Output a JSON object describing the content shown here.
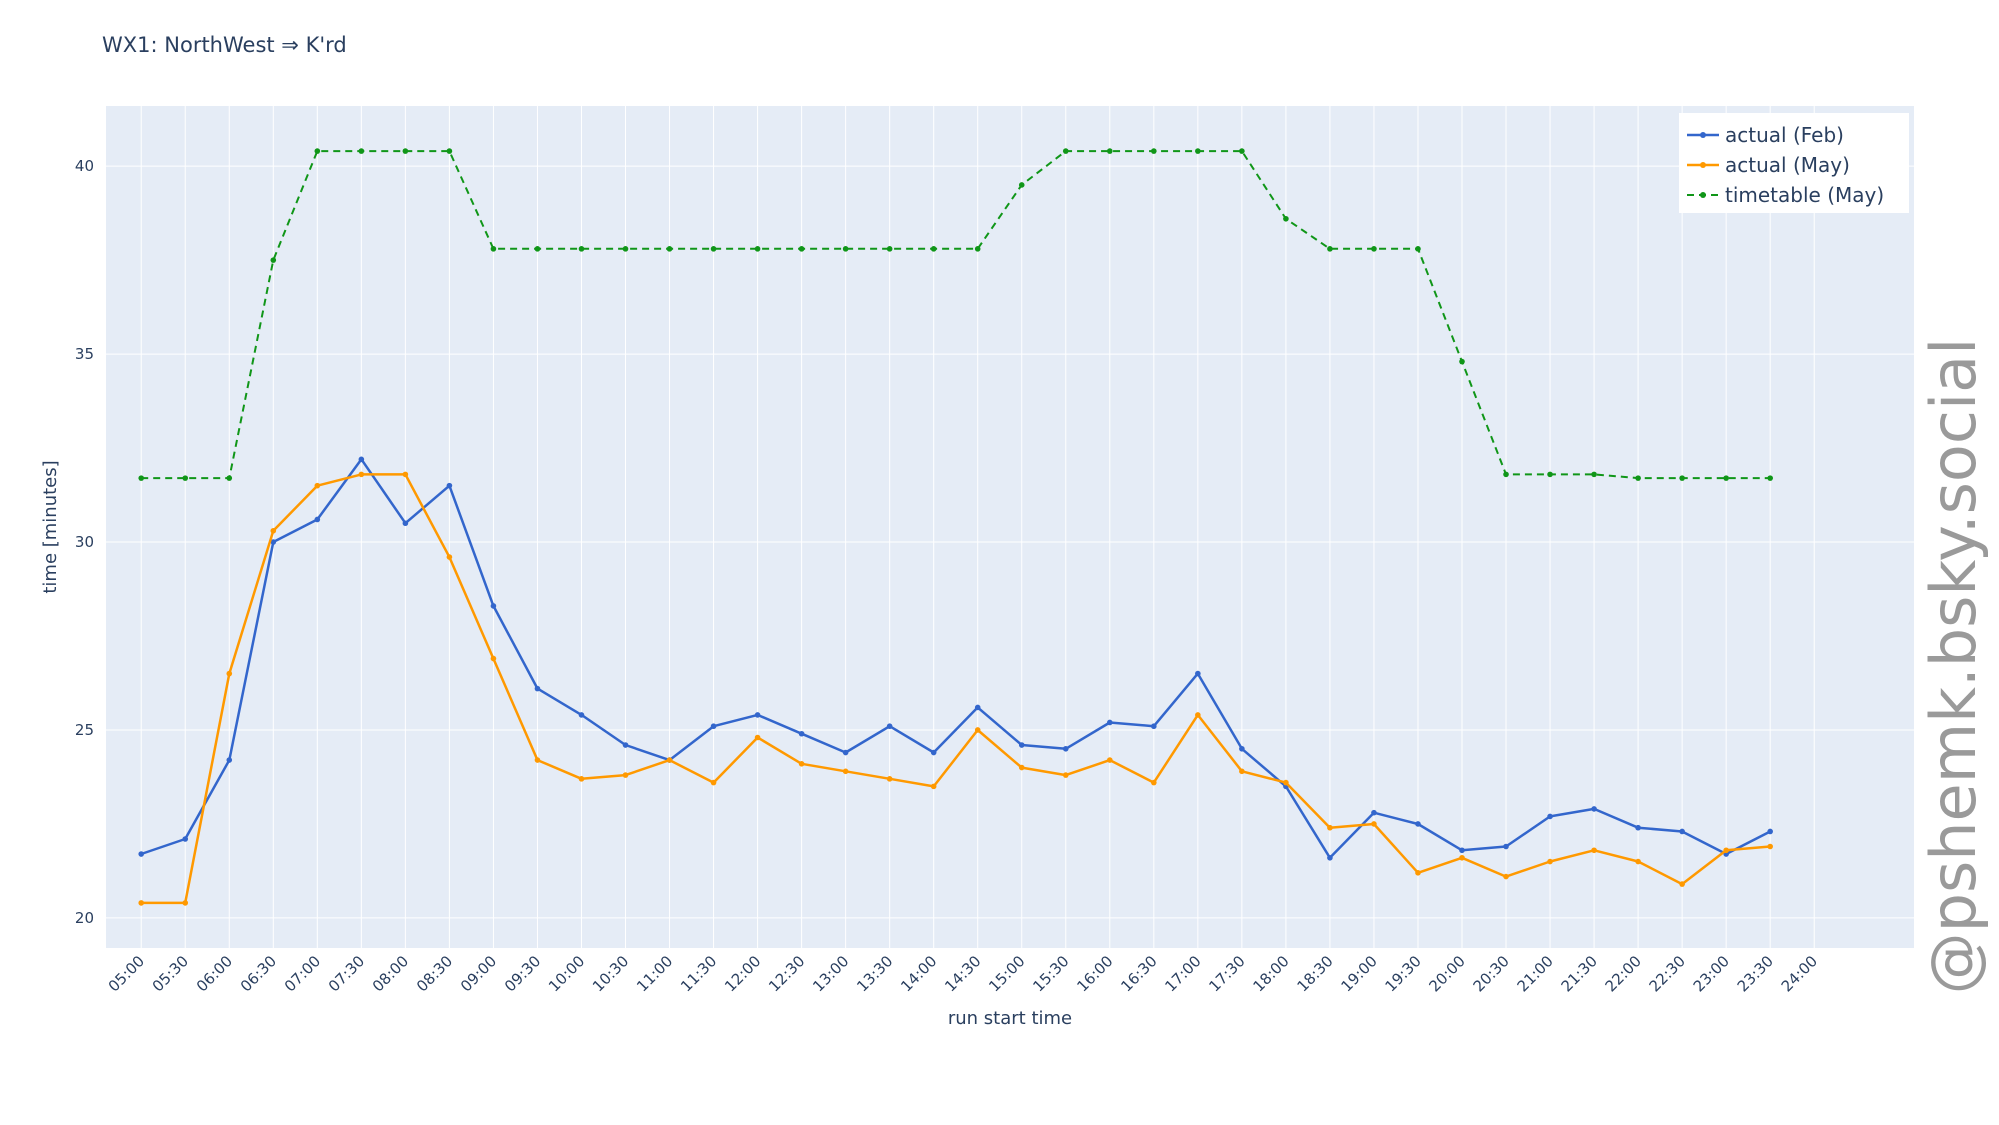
{
  "chart_data": {
    "type": "line",
    "title": "WX1: NorthWest ⇒ K'rd",
    "xlabel": "run start time",
    "ylabel": "time [minutes]",
    "x_ticks": [
      "05:00",
      "05:30",
      "06:00",
      "06:30",
      "07:00",
      "07:30",
      "08:00",
      "08:30",
      "09:00",
      "09:30",
      "10:00",
      "10:30",
      "11:00",
      "11:30",
      "12:00",
      "12:30",
      "13:00",
      "13:30",
      "14:00",
      "14:30",
      "15:00",
      "15:30",
      "16:00",
      "16:30",
      "17:00",
      "17:30",
      "18:00",
      "18:30",
      "19:00",
      "19:30",
      "20:00",
      "20:30",
      "21:00",
      "21:30",
      "22:00",
      "22:30",
      "23:00",
      "23:30",
      "24:00"
    ],
    "y_ticks": [
      20,
      25,
      30,
      35,
      40
    ],
    "ylim": [
      19.2,
      41.6
    ],
    "xlim": [
      "04:36",
      "25:08"
    ],
    "legend_position": "top-right",
    "grid": true,
    "series": [
      {
        "name": "actual (Feb)",
        "color": "#3366cc",
        "style": "solid",
        "x": [
          "05:00",
          "05:30",
          "06:00",
          "06:30",
          "07:00",
          "07:30",
          "08:00",
          "08:30",
          "09:00",
          "09:30",
          "10:00",
          "10:30",
          "11:00",
          "11:30",
          "12:00",
          "12:30",
          "13:00",
          "13:30",
          "14:00",
          "14:30",
          "15:00",
          "15:30",
          "16:00",
          "16:30",
          "17:00",
          "17:30",
          "18:00",
          "18:30",
          "19:00",
          "19:30",
          "20:00",
          "20:30",
          "21:00",
          "21:30",
          "22:00",
          "22:30",
          "23:00",
          "23:30"
        ],
        "values": [
          21.7,
          22.1,
          24.2,
          30.0,
          30.6,
          32.2,
          30.5,
          31.5,
          28.3,
          26.1,
          25.4,
          24.6,
          24.2,
          25.1,
          25.4,
          24.9,
          24.4,
          25.1,
          24.4,
          25.6,
          24.6,
          24.5,
          25.2,
          25.1,
          26.5,
          24.5,
          23.5,
          21.6,
          22.8,
          22.5,
          21.8,
          21.9,
          22.7,
          22.9,
          22.4,
          22.3,
          21.7,
          22.3
        ]
      },
      {
        "name": "actual (May)",
        "color": "#ff9900",
        "style": "solid",
        "x": [
          "05:00",
          "05:30",
          "06:00",
          "06:30",
          "07:00",
          "07:30",
          "08:00",
          "08:30",
          "09:00",
          "09:30",
          "10:00",
          "10:30",
          "11:00",
          "11:30",
          "12:00",
          "12:30",
          "13:00",
          "13:30",
          "14:00",
          "14:30",
          "15:00",
          "15:30",
          "16:00",
          "16:30",
          "17:00",
          "17:30",
          "18:00",
          "18:30",
          "19:00",
          "19:30",
          "20:00",
          "20:30",
          "21:00",
          "21:30",
          "22:00",
          "22:30",
          "23:00",
          "23:30"
        ],
        "values": [
          20.4,
          20.4,
          26.5,
          30.3,
          31.5,
          31.8,
          31.8,
          29.6,
          26.9,
          24.2,
          23.7,
          23.8,
          24.2,
          23.6,
          24.8,
          24.1,
          23.9,
          23.7,
          23.5,
          25.0,
          24.0,
          23.8,
          24.2,
          23.6,
          25.4,
          23.9,
          23.6,
          22.4,
          22.5,
          21.2,
          21.6,
          21.1,
          21.5,
          21.8,
          21.5,
          20.9,
          21.8,
          21.9
        ]
      },
      {
        "name": "timetable (May)",
        "color": "#109618",
        "style": "dashed",
        "x": [
          "05:00",
          "05:30",
          "06:00",
          "06:30",
          "07:00",
          "07:30",
          "08:00",
          "08:30",
          "09:00",
          "09:30",
          "10:00",
          "10:30",
          "11:00",
          "11:30",
          "12:00",
          "12:30",
          "13:00",
          "13:30",
          "14:00",
          "14:30",
          "15:00",
          "15:30",
          "16:00",
          "16:30",
          "17:00",
          "17:30",
          "18:00",
          "18:30",
          "19:00",
          "19:30",
          "20:00",
          "20:30",
          "21:00",
          "21:30",
          "22:00",
          "22:30",
          "23:00",
          "23:30"
        ],
        "values": [
          31.7,
          31.7,
          31.7,
          37.5,
          40.4,
          40.4,
          40.4,
          40.4,
          37.8,
          37.8,
          37.8,
          37.8,
          37.8,
          37.8,
          37.8,
          37.8,
          37.8,
          37.8,
          37.8,
          37.8,
          39.5,
          40.4,
          40.4,
          40.4,
          40.4,
          40.4,
          38.6,
          37.8,
          37.8,
          37.8,
          34.8,
          31.8,
          31.8,
          31.8,
          31.7,
          31.7,
          31.7,
          31.7
        ]
      }
    ]
  },
  "watermark": "@pshemk.bsky.social"
}
